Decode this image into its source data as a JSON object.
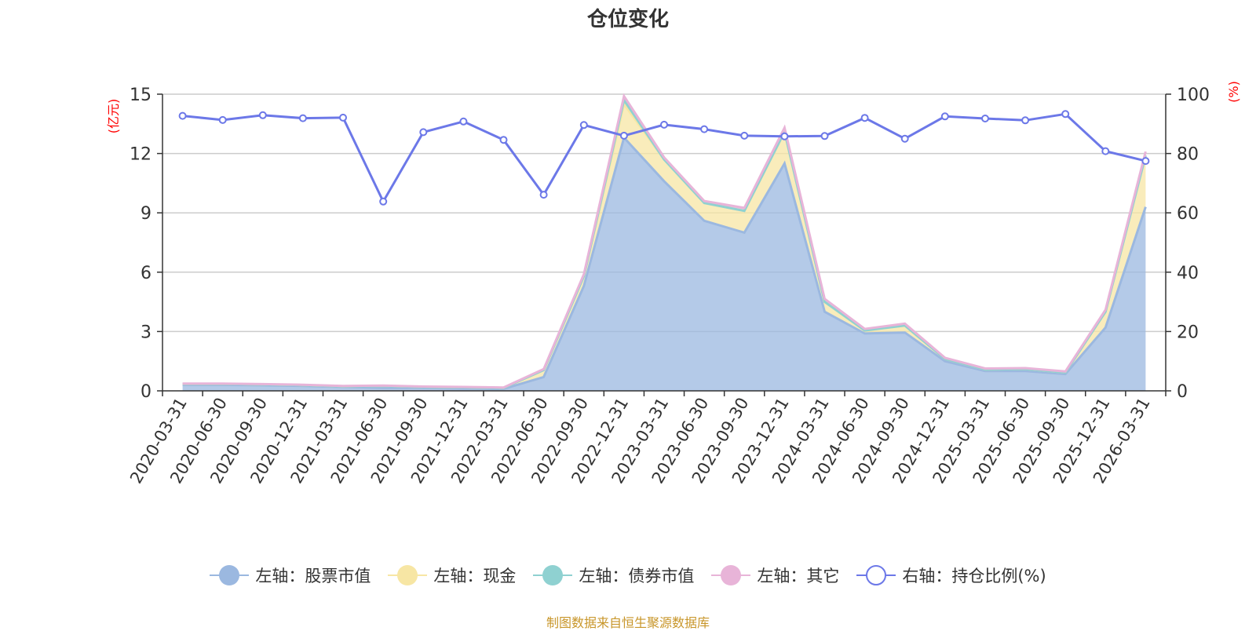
{
  "chart_data": {
    "type": "area",
    "title": "仓位变化",
    "left_axis_label": "(亿元)",
    "right_axis_label": "(%)",
    "left_ylim": [
      0,
      15
    ],
    "left_ticks": [
      "0",
      "3",
      "6",
      "9",
      "12",
      "15"
    ],
    "right_ylim": [
      0,
      100
    ],
    "right_ticks": [
      "0",
      "20",
      "40",
      "60",
      "80",
      "100"
    ],
    "categories": [
      "2020-03-31",
      "2020-06-30",
      "2020-09-30",
      "2020-12-31",
      "2021-03-31",
      "2021-06-30",
      "2021-09-30",
      "2021-12-31",
      "2022-03-31",
      "2022-06-30",
      "2022-09-30",
      "2022-12-31",
      "2023-03-31",
      "2023-06-30",
      "2023-09-30",
      "2023-12-31",
      "2024-03-31",
      "2024-06-30",
      "2024-09-30",
      "2024-12-31",
      "2025-03-31",
      "2025-06-30",
      "2025-09-30",
      "2025-12-31",
      "2026-03-31"
    ],
    "series": [
      {
        "name": "左轴：股票市值",
        "axis": "left",
        "color": "#9bb8e0",
        "values": [
          0.3,
          0.3,
          0.28,
          0.25,
          0.2,
          0.15,
          0.15,
          0.12,
          0.1,
          0.7,
          5.3,
          12.8,
          10.6,
          8.6,
          8.0,
          11.5,
          4.0,
          2.9,
          2.95,
          1.5,
          1.0,
          1.0,
          0.85,
          3.2,
          9.3
        ]
      },
      {
        "name": "左轴：现金",
        "axis": "left",
        "color": "#f7e6a4",
        "values": [
          0.05,
          0.05,
          0.04,
          0.04,
          0.03,
          0.1,
          0.05,
          0.06,
          0.05,
          0.35,
          0.5,
          1.7,
          1.1,
          0.9,
          1.1,
          1.6,
          0.5,
          0.15,
          0.35,
          0.12,
          0.08,
          0.1,
          0.08,
          0.8,
          2.6
        ]
      },
      {
        "name": "左轴：债券市值",
        "axis": "left",
        "color": "#8fd1d1",
        "values": [
          0,
          0,
          0,
          0,
          0,
          0,
          0,
          0,
          0,
          0,
          0,
          0.2,
          0,
          0,
          0,
          0,
          0,
          0,
          0,
          0,
          0,
          0,
          0,
          0,
          0
        ]
      },
      {
        "name": "左轴：其它",
        "axis": "left",
        "color": "#e8b4d8",
        "values": [
          0.02,
          0.02,
          0.02,
          0.02,
          0.02,
          0.02,
          0.02,
          0.02,
          0.02,
          0.05,
          0.1,
          0.2,
          0.1,
          0.1,
          0.15,
          0.2,
          0.15,
          0.08,
          0.1,
          0.05,
          0.05,
          0.05,
          0.05,
          0.1,
          0.2
        ]
      },
      {
        "name": "右轴：持仓比例(%)",
        "axis": "right",
        "color": "#6c78e8",
        "values": [
          92.7,
          91.3,
          92.9,
          91.9,
          92.1,
          63.8,
          87.2,
          90.8,
          84.6,
          66.1,
          89.6,
          86.0,
          89.7,
          88.2,
          86.0,
          85.8,
          85.9,
          92.0,
          85.0,
          92.5,
          91.8,
          91.2,
          93.3,
          80.8,
          77.5
        ]
      }
    ]
  },
  "source_text": "制图数据来自恒生聚源数据库"
}
